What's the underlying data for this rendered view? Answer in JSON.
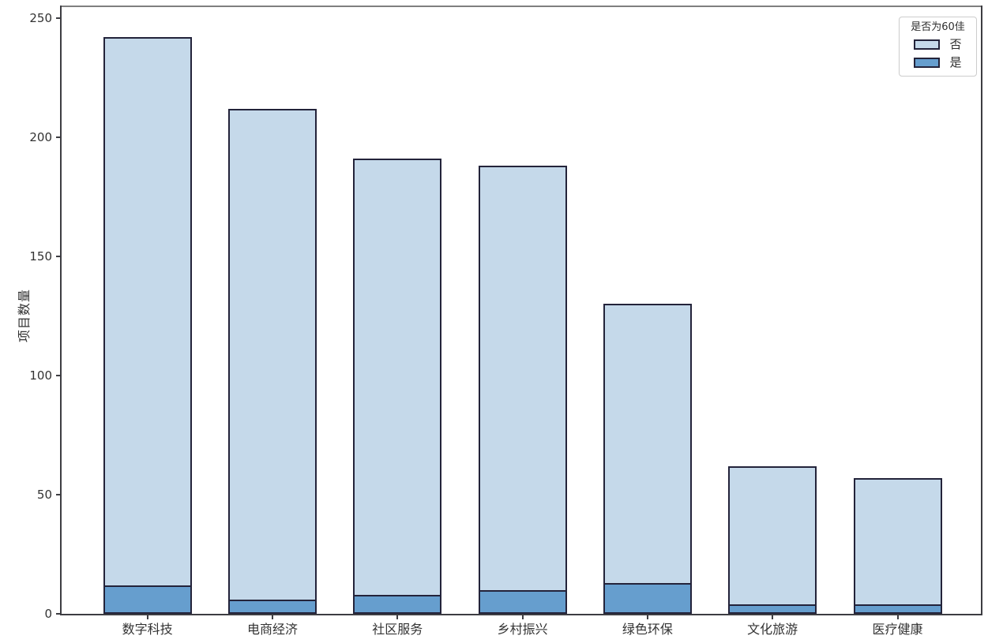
{
  "colors": {
    "background": "#ffffff",
    "bar_edge": "#23233a",
    "axis": "#3d3d42",
    "top_spine": "#7f7f7f",
    "text": "#333333"
  },
  "chart_data": {
    "type": "bar",
    "stacked": true,
    "title": "",
    "categories": [
      "数字科技",
      "电商经济",
      "社区服务",
      "乡村振兴",
      "绿色环保",
      "文化旅游",
      "医疗健康"
    ],
    "series": [
      {
        "name": "否",
        "color": "#c5d9ea",
        "values": [
          230,
          206,
          183,
          178,
          117,
          58,
          53
        ]
      },
      {
        "name": "是",
        "color": "#669ece",
        "values": [
          12,
          6,
          8,
          10,
          13,
          4,
          4
        ]
      }
    ],
    "stack_bottom": "是",
    "totals": [
      242,
      212,
      191,
      188,
      130,
      62,
      57
    ],
    "xlabel": "",
    "ylabel": "项目数量",
    "yticks": [
      0,
      50,
      100,
      150,
      200,
      250
    ],
    "ylim": [
      0,
      254.6
    ],
    "grid": false,
    "legend": {
      "title": "是否为60佳",
      "position": "upper-right",
      "entries": [
        "否",
        "是"
      ]
    }
  }
}
